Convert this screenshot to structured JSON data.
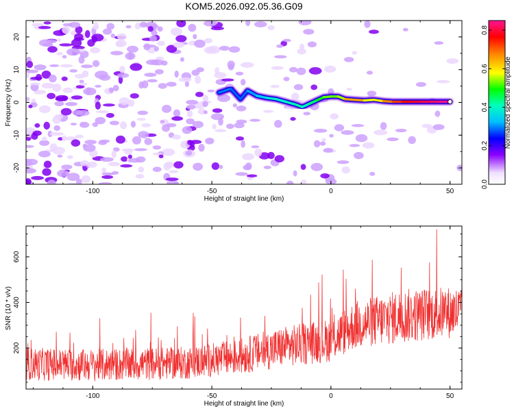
{
  "title": "KOM5.2026.092.05.36.G09",
  "chart_data": [
    {
      "type": "heatmap",
      "name": "spectrogram",
      "xlabel": "Height of straight line (km)",
      "ylabel": "Frequency (Hz)",
      "xlim": [
        -128,
        55
      ],
      "ylim": [
        -25,
        25
      ],
      "xticks": [
        -100,
        -50,
        0,
        50
      ],
      "xtick_labels": [
        "-100",
        "-50",
        "0",
        "50"
      ],
      "yticks": [
        -20,
        -10,
        0,
        10,
        20
      ],
      "ytick_labels": [
        "-20",
        "-10",
        "0",
        "10",
        "20"
      ],
      "colorbar": {
        "label": "Normalized spectral amplitude",
        "range": [
          0.0,
          0.85
        ],
        "ticks": [
          0.0,
          0.2,
          0.4,
          0.6,
          0.8
        ],
        "tick_labels": [
          "0.0",
          "0.2",
          "0.4",
          "0.6",
          "0.8"
        ],
        "colors": [
          "#ffffff",
          "#f0e0ff",
          "#8b00ff",
          "#0000ff",
          "#00bfff",
          "#00ffbf",
          "#00ff00",
          "#ffff00",
          "#ff8000",
          "#ff0000",
          "#ff1493"
        ]
      },
      "ridge": [
        {
          "x": -47,
          "y": 3.0,
          "v": 0.28
        },
        {
          "x": -42,
          "y": 4.2,
          "v": 0.3
        },
        {
          "x": -38,
          "y": 1.0,
          "v": 0.26
        },
        {
          "x": -35,
          "y": 3.6,
          "v": 0.3
        },
        {
          "x": -31,
          "y": 2.0,
          "v": 0.32
        },
        {
          "x": -27,
          "y": 1.4,
          "v": 0.36
        },
        {
          "x": -23,
          "y": 1.0,
          "v": 0.4
        },
        {
          "x": -19,
          "y": 0.2,
          "v": 0.38
        },
        {
          "x": -15,
          "y": -0.6,
          "v": 0.44
        },
        {
          "x": -12,
          "y": -1.4,
          "v": 0.4
        },
        {
          "x": -9,
          "y": -0.4,
          "v": 0.42
        },
        {
          "x": -6,
          "y": 0.6,
          "v": 0.46
        },
        {
          "x": -3,
          "y": 1.6,
          "v": 0.5
        },
        {
          "x": 0,
          "y": 1.8,
          "v": 0.55
        },
        {
          "x": 3,
          "y": 1.8,
          "v": 0.5
        },
        {
          "x": 6,
          "y": 1.0,
          "v": 0.6
        },
        {
          "x": 10,
          "y": 0.8,
          "v": 0.68
        },
        {
          "x": 14,
          "y": 0.6,
          "v": 0.6
        },
        {
          "x": 18,
          "y": 0.8,
          "v": 0.55
        },
        {
          "x": 22,
          "y": 0.4,
          "v": 0.62
        },
        {
          "x": 26,
          "y": 0.2,
          "v": 0.7
        },
        {
          "x": 30,
          "y": 0.2,
          "v": 0.72
        },
        {
          "x": 34,
          "y": 0.2,
          "v": 0.76
        },
        {
          "x": 38,
          "y": 0.2,
          "v": 0.8
        },
        {
          "x": 42,
          "y": 0.2,
          "v": 0.8
        },
        {
          "x": 46,
          "y": 0.2,
          "v": 0.84
        },
        {
          "x": 50,
          "y": 0.2,
          "v": 0.85
        }
      ]
    },
    {
      "type": "line",
      "name": "snr",
      "xlabel": "Height of straight line (km)",
      "ylabel": "SNR (10 * v/v)",
      "xlim": [
        -128,
        55
      ],
      "ylim": [
        20,
        735
      ],
      "xticks": [
        -100,
        -50,
        0,
        50
      ],
      "xtick_labels": [
        "-100",
        "-50",
        "0",
        "50"
      ],
      "yticks": [
        200,
        400,
        600
      ],
      "ytick_labels": [
        "200",
        "400",
        "600"
      ],
      "color": "#f03030",
      "trend": [
        {
          "x": -128,
          "mean": 130,
          "spread": 60
        },
        {
          "x": -100,
          "mean": 125,
          "spread": 60
        },
        {
          "x": -60,
          "mean": 135,
          "spread": 60
        },
        {
          "x": -40,
          "mean": 160,
          "spread": 65
        },
        {
          "x": -20,
          "mean": 205,
          "spread": 75
        },
        {
          "x": 0,
          "mean": 235,
          "spread": 80
        },
        {
          "x": 10,
          "mean": 300,
          "spread": 90
        },
        {
          "x": 30,
          "mean": 340,
          "spread": 100
        },
        {
          "x": 55,
          "mean": 360,
          "spread": 95
        }
      ]
    }
  ]
}
